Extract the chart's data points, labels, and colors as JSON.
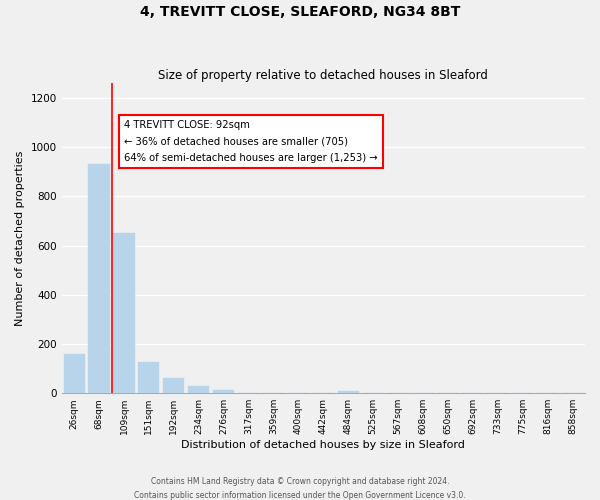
{
  "title": "4, TREVITT CLOSE, SLEAFORD, NG34 8BT",
  "subtitle": "Size of property relative to detached houses in Sleaford",
  "xlabel": "Distribution of detached houses by size in Sleaford",
  "ylabel": "Number of detached properties",
  "categories": [
    "26sqm",
    "68sqm",
    "109sqm",
    "151sqm",
    "192sqm",
    "234sqm",
    "276sqm",
    "317sqm",
    "359sqm",
    "400sqm",
    "442sqm",
    "484sqm",
    "525sqm",
    "567sqm",
    "608sqm",
    "650sqm",
    "692sqm",
    "733sqm",
    "775sqm",
    "816sqm",
    "858sqm"
  ],
  "values": [
    160,
    930,
    650,
    125,
    60,
    28,
    12,
    0,
    0,
    0,
    0,
    10,
    0,
    0,
    0,
    0,
    0,
    0,
    0,
    0,
    0
  ],
  "bar_color": "#b8d4ea",
  "bar_edge_color": "#b8d4ea",
  "marker_color": "red",
  "annotation_lines": [
    "4 TREVITT CLOSE: 92sqm",
    "← 36% of detached houses are smaller (705)",
    "64% of semi-detached houses are larger (1,253) →"
  ],
  "ylim": [
    0,
    1260
  ],
  "yticks": [
    0,
    200,
    400,
    600,
    800,
    1000,
    1200
  ],
  "footer_line1": "Contains HM Land Registry data © Crown copyright and database right 2024.",
  "footer_line2": "Contains public sector information licensed under the Open Government Licence v3.0.",
  "background_color": "#f0f0f0",
  "grid_color": "#ffffff"
}
